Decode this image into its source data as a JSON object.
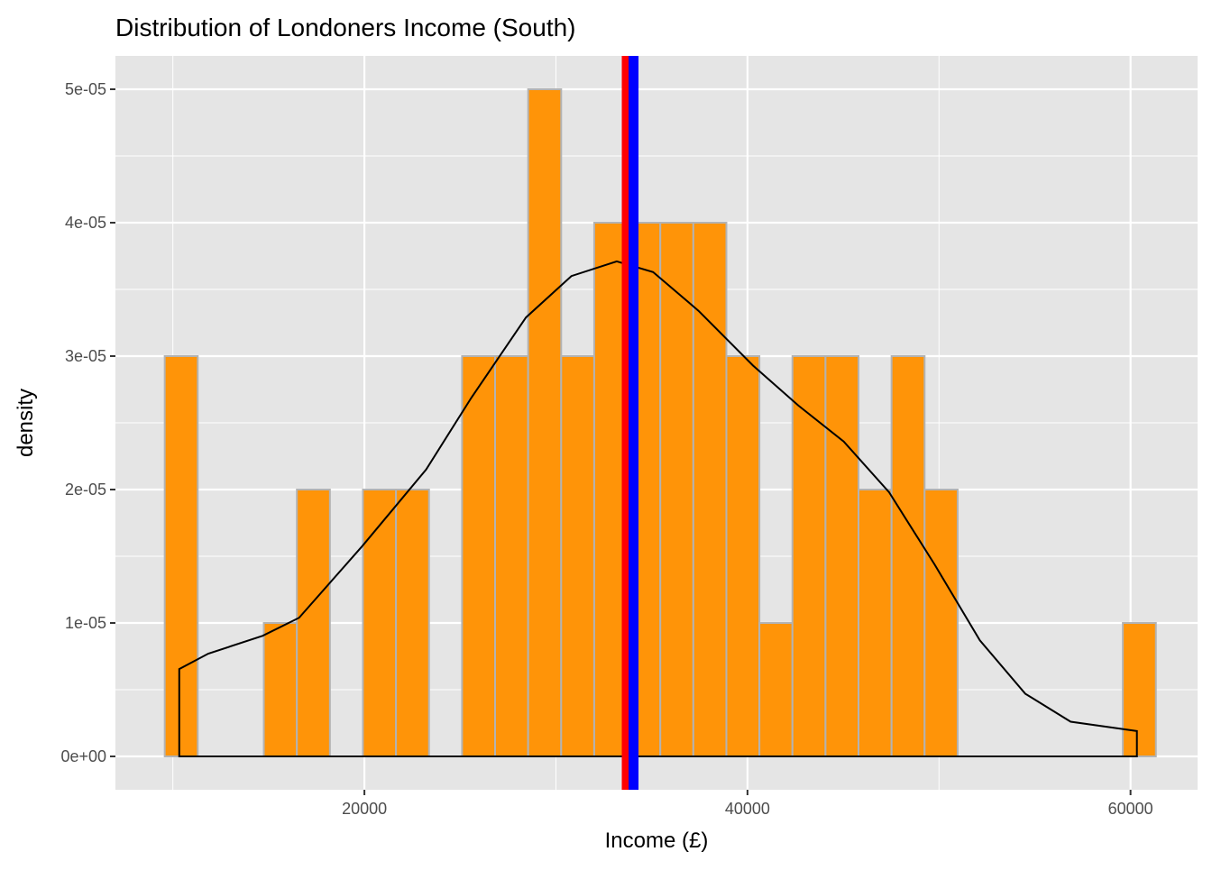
{
  "chart_data": {
    "type": "bar",
    "title": "Distribution of Londoners Income (South)",
    "xlabel": "Income (£)",
    "ylabel": "density",
    "xlim": [
      7000,
      63500
    ],
    "ylim": [
      -2.5e-06,
      5.25e-05
    ],
    "x_ticks": [
      20000,
      40000,
      60000
    ],
    "x_tick_labels": [
      "20000",
      "40000",
      "60000"
    ],
    "y_ticks": [
      0,
      1e-05,
      2e-05,
      3e-05,
      4e-05,
      5e-05
    ],
    "y_tick_labels": [
      "0e+00",
      "1e-05",
      "2e-05",
      "3e-05",
      "4e-05",
      "5e-05"
    ],
    "grid": true,
    "histogram": {
      "bin_start": 9573,
      "bin_width": 1725,
      "densities": [
        3e-05,
        0,
        0,
        1e-05,
        2e-05,
        0,
        2e-05,
        2e-05,
        0,
        3e-05,
        3e-05,
        5e-05,
        3e-05,
        4e-05,
        4e-05,
        4e-05,
        4e-05,
        3e-05,
        1e-05,
        3e-05,
        3e-05,
        2e-05,
        3e-05,
        2e-05,
        0,
        0,
        0,
        0,
        0,
        1e-05
      ],
      "fill": "#FF9408",
      "outline": "#B3B3B3"
    },
    "density_curve": {
      "color": "#000000",
      "x": [
        10332,
        11848,
        14692,
        16588,
        19905,
        23223,
        25592,
        28436,
        30806,
        33175,
        35071,
        37441,
        40284,
        42654,
        45024,
        47393,
        49763,
        52133,
        54502,
        56872,
        60332
      ],
      "y": [
        6.55e-06,
        7.7e-06,
        9.04e-06,
        1.039e-05,
        1.579e-05,
        2.15e-05,
        2.69e-05,
        3.29e-05,
        3.6e-05,
        3.71e-05,
        3.63e-05,
        3.34e-05,
        2.93e-05,
        2.63e-05,
        2.36e-05,
        1.98e-05,
        1.44e-05,
        8.7e-06,
        4.7e-06,
        2.6e-06,
        1.9e-06
      ]
    },
    "vlines": [
      {
        "x": 33626,
        "color": "#FF0000"
      },
      {
        "x": 34052,
        "color": "#0000FF"
      }
    ],
    "panel_background": "#E5E5E5",
    "grid_color": "#FFFFFF"
  }
}
